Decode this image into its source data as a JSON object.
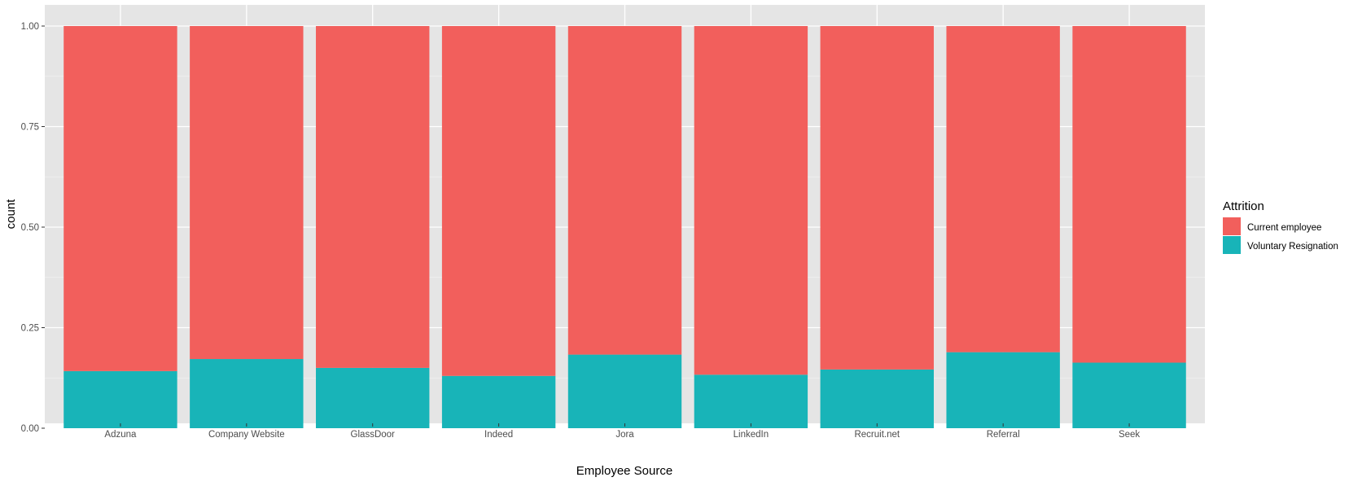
{
  "chart_data": {
    "type": "bar",
    "stacked": true,
    "position": "fill",
    "categories": [
      "Adzuna",
      "Company Website",
      "GlassDoor",
      "Indeed",
      "Jora",
      "LinkedIn",
      "Recruit.net",
      "Referral",
      "Seek"
    ],
    "series": [
      {
        "name": "Voluntary Resignation",
        "color": "#18B4B8",
        "values": [
          0.142,
          0.172,
          0.15,
          0.13,
          0.183,
          0.133,
          0.146,
          0.189,
          0.163
        ]
      },
      {
        "name": "Current employee",
        "color": "#F25F5C",
        "values": [
          0.858,
          0.828,
          0.85,
          0.87,
          0.817,
          0.867,
          0.854,
          0.811,
          0.837
        ]
      }
    ],
    "xlabel": "Employee Source",
    "ylabel": "count",
    "ylim": [
      0,
      1
    ],
    "yticks": [
      0,
      0.25,
      0.5,
      0.75,
      1
    ],
    "ytick_labels": [
      "0.00",
      "0.25",
      "0.50",
      "0.75",
      "1.00"
    ],
    "grid": true,
    "panel_background": "#E5E5E5",
    "grid_color": "#FFFFFF",
    "legend": {
      "title": "Attrition",
      "placement": "right",
      "entries": [
        {
          "label": "Current employee",
          "color": "#F25F5C"
        },
        {
          "label": "Voluntary Resignation",
          "color": "#18B4B8"
        }
      ]
    }
  }
}
